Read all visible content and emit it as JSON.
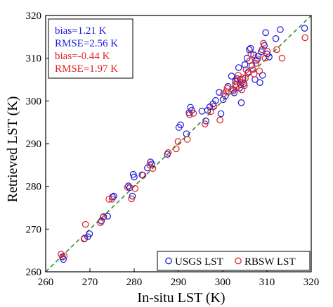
{
  "chart_data": {
    "type": "scatter",
    "xlabel": "In-situ LST (K)",
    "ylabel": "Retrieved LST (K)",
    "xlim": [
      260,
      320
    ],
    "ylim": [
      260,
      320
    ],
    "x_ticks": [
      260,
      270,
      280,
      290,
      300,
      310,
      320
    ],
    "y_ticks": [
      260,
      270,
      280,
      290,
      300,
      310,
      320
    ],
    "grid": false,
    "reference_line": {
      "label": "1:1",
      "style": "dashed",
      "color": "#3a8a2a"
    },
    "annotations": [
      {
        "text": "bias=1.21 K",
        "color": "#1a1adb"
      },
      {
        "text": "RMSE=2.56 K",
        "color": "#1a1adb"
      },
      {
        "text": "bias=-0.44 K",
        "color": "#e02020"
      },
      {
        "text": "RMSE=1.97 K",
        "color": "#e02020"
      }
    ],
    "legend_position": "bottom-right",
    "series": [
      {
        "name": "USGS LST",
        "color": "#1a1adb",
        "marker": "open-circle",
        "points": [
          [
            263.8,
            263.5
          ],
          [
            264.0,
            262.9
          ],
          [
            268.8,
            267.8
          ],
          [
            269.5,
            268.2
          ],
          [
            269.9,
            268.9
          ],
          [
            272.6,
            271.9
          ],
          [
            273.1,
            272.9
          ],
          [
            274.0,
            273.0
          ],
          [
            275.1,
            277.5
          ],
          [
            275.4,
            277.7
          ],
          [
            278.7,
            280.1
          ],
          [
            279.0,
            279.7
          ],
          [
            279.6,
            277.7
          ],
          [
            279.8,
            282.8
          ],
          [
            280.0,
            282.2
          ],
          [
            281.8,
            282.7
          ],
          [
            283.0,
            284.3
          ],
          [
            283.7,
            285.7
          ],
          [
            284.0,
            285.2
          ],
          [
            287.5,
            287.5
          ],
          [
            290.1,
            293.8
          ],
          [
            290.5,
            294.4
          ],
          [
            291.8,
            292.3
          ],
          [
            292.4,
            297.2
          ],
          [
            292.7,
            298.5
          ],
          [
            293.0,
            297.8
          ],
          [
            295.3,
            297.6
          ],
          [
            296.2,
            295.3
          ],
          [
            296.6,
            297.8
          ],
          [
            297.1,
            298.6
          ],
          [
            297.8,
            299.3
          ],
          [
            298.4,
            300.1
          ],
          [
            299.2,
            302.0
          ],
          [
            299.6,
            297.0
          ],
          [
            300.1,
            300.3
          ],
          [
            300.6,
            301.2
          ],
          [
            301.2,
            303.4
          ],
          [
            302.0,
            305.8
          ],
          [
            302.6,
            301.9
          ],
          [
            302.9,
            304.6
          ],
          [
            303.3,
            305.2
          ],
          [
            303.6,
            307.8
          ],
          [
            303.8,
            303.0
          ],
          [
            304.2,
            299.6
          ],
          [
            304.5,
            305.0
          ],
          [
            304.8,
            304.1
          ],
          [
            305.0,
            308.5
          ],
          [
            305.5,
            310.0
          ],
          [
            306.0,
            312.0
          ],
          [
            306.3,
            312.3
          ],
          [
            306.6,
            308.3
          ],
          [
            307.0,
            310.8
          ],
          [
            307.3,
            305.0
          ],
          [
            307.6,
            309.5
          ],
          [
            308.0,
            310.5
          ],
          [
            308.4,
            304.3
          ],
          [
            308.7,
            311.5
          ],
          [
            309.0,
            306.0
          ],
          [
            309.4,
            313.0
          ],
          [
            309.7,
            316.0
          ],
          [
            310.0,
            311.0
          ],
          [
            310.5,
            310.3
          ],
          [
            312.0,
            314.6
          ],
          [
            313.0,
            316.7
          ],
          [
            318.5,
            317.0
          ],
          [
            305.8,
            306.8
          ],
          [
            304.0,
            303.8
          ],
          [
            302.3,
            302.7
          ]
        ]
      },
      {
        "name": "RBSW LST",
        "color": "#e02020",
        "marker": "open-circle",
        "points": [
          [
            263.5,
            264.1
          ],
          [
            264.2,
            263.7
          ],
          [
            268.7,
            267.7
          ],
          [
            269.0,
            271.1
          ],
          [
            272.4,
            271.5
          ],
          [
            273.0,
            272.8
          ],
          [
            274.3,
            277.0
          ],
          [
            275.0,
            277.0
          ],
          [
            278.5,
            279.8
          ],
          [
            279.4,
            277.1
          ],
          [
            280.2,
            279.5
          ],
          [
            282.0,
            282.6
          ],
          [
            283.5,
            285.0
          ],
          [
            284.2,
            284.2
          ],
          [
            287.7,
            287.9
          ],
          [
            289.5,
            288.8
          ],
          [
            289.9,
            290.5
          ],
          [
            292.0,
            291.0
          ],
          [
            292.5,
            296.8
          ],
          [
            293.4,
            297.1
          ],
          [
            296.0,
            294.6
          ],
          [
            297.3,
            297.5
          ],
          [
            298.0,
            298.7
          ],
          [
            299.4,
            295.5
          ],
          [
            300.2,
            301.7
          ],
          [
            301.0,
            303.0
          ],
          [
            302.4,
            302.4
          ],
          [
            302.8,
            303.8
          ],
          [
            303.2,
            304.6
          ],
          [
            303.5,
            306.0
          ],
          [
            303.9,
            304.9
          ],
          [
            304.3,
            302.6
          ],
          [
            304.6,
            305.4
          ],
          [
            304.9,
            303.6
          ],
          [
            305.3,
            307.3
          ],
          [
            305.7,
            306.5
          ],
          [
            306.1,
            309.4
          ],
          [
            306.4,
            311.0
          ],
          [
            306.8,
            307.3
          ],
          [
            307.1,
            306.3
          ],
          [
            307.5,
            308.8
          ],
          [
            307.9,
            309.8
          ],
          [
            308.3,
            307.0
          ],
          [
            308.9,
            312.0
          ],
          [
            309.2,
            313.5
          ],
          [
            309.6,
            310.0
          ],
          [
            310.1,
            311.6
          ],
          [
            312.2,
            312.0
          ],
          [
            313.4,
            310.0
          ],
          [
            318.6,
            314.8
          ],
          [
            303.0,
            303.2
          ],
          [
            304.4,
            304.3
          ],
          [
            305.1,
            305.3
          ],
          [
            300.8,
            302.2
          ]
        ]
      }
    ]
  }
}
